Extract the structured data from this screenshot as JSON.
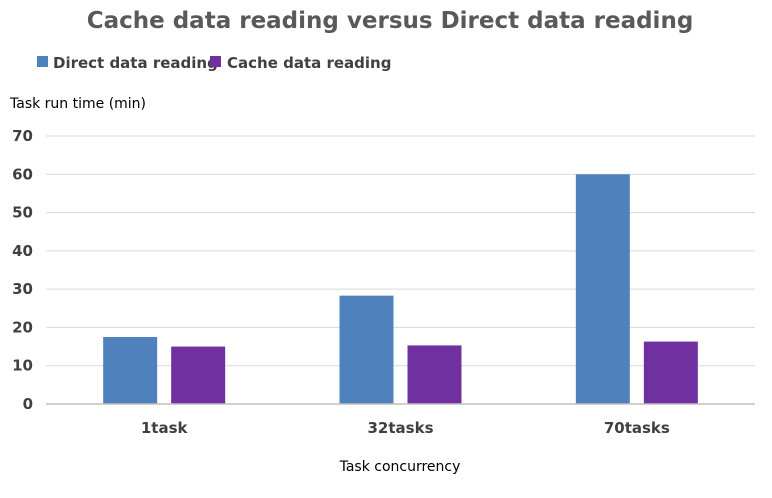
{
  "chart_data": {
    "type": "bar",
    "title": "Cache data reading versus Direct data reading",
    "xlabel": "Task concurrency",
    "ylabel": "Task run time (min)",
    "categories": [
      "1task",
      "32tasks",
      "70tasks"
    ],
    "series": [
      {
        "name": "Direct data reading",
        "color": "#4f81bd",
        "values": [
          17.5,
          28.3,
          60
        ]
      },
      {
        "name": "Cache data reading",
        "color": "#7030a0",
        "values": [
          15,
          15.3,
          16.3
        ]
      }
    ],
    "ylim": [
      0,
      70
    ],
    "yticks": [
      0,
      10,
      20,
      30,
      40,
      50,
      60,
      70
    ],
    "grid": true,
    "legend_position": "top-left"
  }
}
